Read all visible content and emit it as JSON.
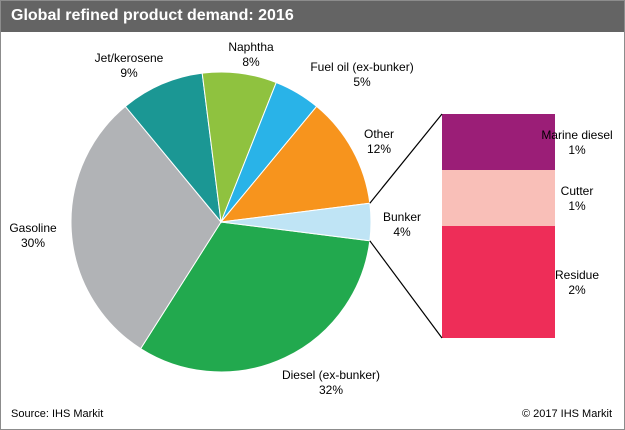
{
  "title": "Global refined product demand: 2016",
  "footer": {
    "source": "Source: IHS Markit",
    "copyright": "© 2017 IHS Markit"
  },
  "colors": {
    "titlebar": "#646464",
    "diesel": "#22a94e",
    "gasoline": "#b1b3b6",
    "jet": "#1b9794",
    "naphtha": "#8fc23f",
    "fueloil": "#29b3e8",
    "other": "#f7941d",
    "bunker": "#bfe4f5",
    "marine": "#9b1e77",
    "cutter": "#f9bfb8",
    "residue": "#ee2d58"
  },
  "chart_data": [
    {
      "type": "pie",
      "title": "Global refined product demand: 2016",
      "slices": [
        {
          "name": "Diesel (ex-bunker)",
          "value": 32,
          "label": "32%",
          "color": "#22a94e"
        },
        {
          "name": "Gasoline",
          "value": 30,
          "label": "30%",
          "color": "#b1b3b6"
        },
        {
          "name": "Jet/kerosene",
          "value": 9,
          "label": "9%",
          "color": "#1b9794"
        },
        {
          "name": "Naphtha",
          "value": 8,
          "label": "8%",
          "color": "#8fc23f"
        },
        {
          "name": "Fuel oil (ex-bunker)",
          "value": 5,
          "label": "5%",
          "color": "#29b3e8"
        },
        {
          "name": "Other",
          "value": 12,
          "label": "12%",
          "color": "#f7941d"
        },
        {
          "name": "Bunker",
          "value": 4,
          "label": "4%",
          "color": "#bfe4f5"
        }
      ]
    },
    {
      "type": "bar",
      "stacked": true,
      "breakdown_of": "Bunker",
      "segments": [
        {
          "name": "Marine diesel",
          "value": 1,
          "label": "1%",
          "color": "#9b1e77"
        },
        {
          "name": "Cutter",
          "value": 1,
          "label": "1%",
          "color": "#f9bfb8"
        },
        {
          "name": "Residue",
          "value": 2,
          "label": "2%",
          "color": "#ee2d58"
        }
      ]
    }
  ]
}
